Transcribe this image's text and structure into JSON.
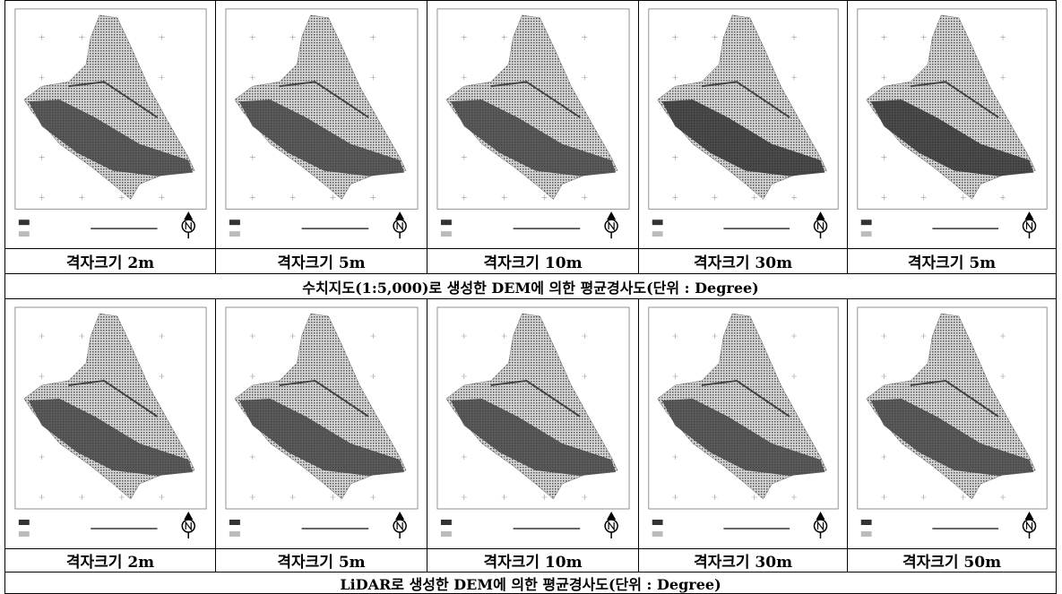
{
  "panels": [
    {
      "maps": [
        {
          "caption": "격자크기 2m"
        },
        {
          "caption": "격자크기 5m"
        },
        {
          "caption": "격자크기 10m"
        },
        {
          "caption": "격자크기 30m"
        },
        {
          "caption": "격자크기 5m"
        }
      ],
      "caption": "수치지도(1:5,000)로 생성한 DEM에 의한 평균경사도(단위 : Degree)"
    },
    {
      "maps": [
        {
          "caption": "격자크기 2m"
        },
        {
          "caption": "격자크기 5m"
        },
        {
          "caption": "격자크기 10m"
        },
        {
          "caption": "격자크기 30m"
        },
        {
          "caption": "격자크기 50m"
        }
      ],
      "caption": "LiDAR로 생성한 DEM에 의한 평균경사도(단위 : Degree)"
    }
  ]
}
